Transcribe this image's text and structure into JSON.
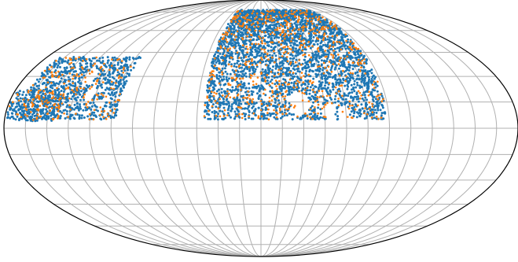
{
  "chart_data": {
    "type": "scatter",
    "projection": "mollweide",
    "title": "",
    "xlabel": "",
    "ylabel": "",
    "grid": true,
    "grid_color": "#b0b0b0",
    "xlim": [
      -180,
      180
    ],
    "ylim": [
      -90,
      90
    ],
    "meridians_deg": [
      -165,
      -150,
      -135,
      -120,
      -105,
      -90,
      -75,
      -60,
      -45,
      -30,
      -15,
      0,
      15,
      30,
      45,
      60,
      75,
      90,
      105,
      120,
      135,
      150,
      165
    ],
    "parallels_deg": [
      -75,
      -60,
      -45,
      -30,
      -15,
      0,
      15,
      30,
      45,
      60,
      75
    ],
    "series": [
      {
        "color": "#1f77b4",
        "point_density": "dense",
        "regions": [
          {
            "lon_range": [
              -40,
              88
            ],
            "lat_range": [
              5,
              77
            ]
          },
          {
            "lon_range": [
              -179,
              -143
            ],
            "lat_range": [
              4,
              22
            ]
          },
          {
            "lon_range": [
              -170,
              -101
            ],
            "lat_range": [
              5,
              42
            ]
          }
        ],
        "voids": [
          {
            "lon": 28,
            "lat": 14,
            "r": 7
          },
          {
            "lon": 48,
            "lat": 10,
            "r": 5
          },
          {
            "lon": 58,
            "lat": 8,
            "r": 4
          },
          {
            "lon": -131,
            "lat": 30,
            "r": 5
          },
          {
            "lon": -124,
            "lat": 20,
            "r": 4
          },
          {
            "lon": -114,
            "lat": 14,
            "r": 3
          },
          {
            "lon": -5,
            "lat": 28,
            "r": 4
          }
        ]
      },
      {
        "color": "#ff7f0e",
        "point_density": "sparse",
        "regions": [
          {
            "lon_range": [
              -40,
              88
            ],
            "lat_range": [
              5,
              77
            ]
          },
          {
            "lon_range": [
              -179,
              -143
            ],
            "lat_range": [
              4,
              22
            ]
          },
          {
            "lon_range": [
              -170,
              -101
            ],
            "lat_range": [
              5,
              42
            ]
          }
        ]
      }
    ]
  }
}
